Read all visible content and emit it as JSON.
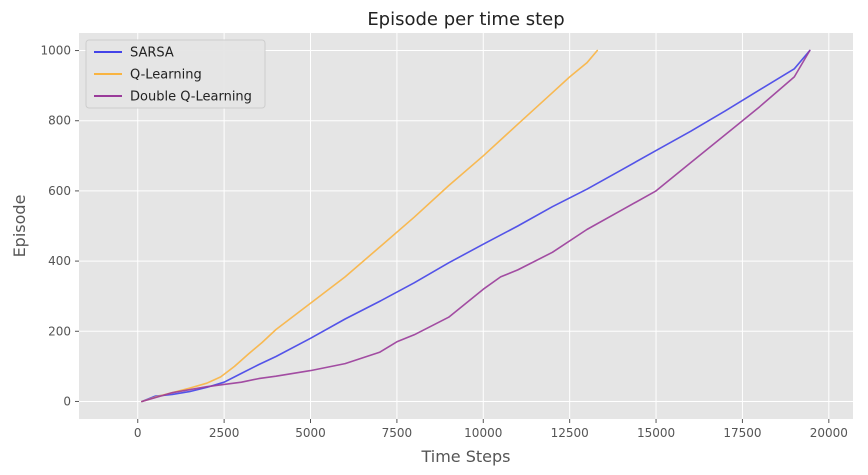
{
  "chart_data": {
    "type": "line",
    "title": "Episode per time step",
    "xlabel": "Time Steps",
    "ylabel": "Episode",
    "xlim": [
      -1700,
      20700
    ],
    "ylim": [
      -50,
      1050
    ],
    "xticks": [
      0,
      2500,
      5000,
      7500,
      10000,
      12500,
      15000,
      17500,
      20000
    ],
    "yticks": [
      0,
      200,
      400,
      600,
      800,
      1000
    ],
    "xtick_labels": [
      "0",
      "2500",
      "5000",
      "7500",
      "10000",
      "12500",
      "15000",
      "17500",
      "20000"
    ],
    "ytick_labels": [
      "0",
      "200",
      "400",
      "600",
      "800",
      "1000"
    ],
    "grid": true,
    "legend_position": "top-left",
    "background": "#e5e5e5",
    "series": [
      {
        "name": "SARSA",
        "color": "#4343e8",
        "x": [
          120,
          500,
          1000,
          1500,
          2000,
          2500,
          3000,
          3500,
          4000,
          5000,
          6000,
          7000,
          8000,
          9000,
          10000,
          11000,
          12000,
          13000,
          14000,
          15000,
          16000,
          17000,
          18000,
          19000,
          19450
        ],
        "y": [
          0,
          15,
          20,
          28,
          40,
          55,
          80,
          105,
          128,
          180,
          235,
          285,
          338,
          395,
          448,
          500,
          555,
          605,
          660,
          715,
          770,
          828,
          888,
          948,
          1000
        ]
      },
      {
        "name": "Q-Learning",
        "color": "#f9b441",
        "x": [
          120,
          500,
          1000,
          1500,
          2000,
          2400,
          2800,
          3200,
          3600,
          4000,
          5000,
          6000,
          7000,
          8000,
          9000,
          10000,
          11000,
          12000,
          12500,
          13000,
          13300
        ],
        "y": [
          0,
          12,
          25,
          38,
          52,
          70,
          100,
          135,
          168,
          205,
          280,
          355,
          440,
          525,
          615,
          700,
          790,
          880,
          925,
          965,
          1000
        ]
      },
      {
        "name": "Double Q-Learning",
        "color": "#9a3b9a",
        "x": [
          120,
          1000,
          2000,
          3000,
          3500,
          4000,
          5000,
          5500,
          6000,
          7000,
          7500,
          8000,
          9000,
          10000,
          10500,
          11000,
          12000,
          13000,
          14000,
          15000,
          16000,
          17000,
          18000,
          19000,
          19450
        ],
        "y": [
          0,
          25,
          42,
          55,
          65,
          72,
          88,
          98,
          108,
          140,
          170,
          190,
          240,
          320,
          355,
          375,
          425,
          490,
          545,
          600,
          680,
          760,
          840,
          925,
          1000
        ]
      }
    ]
  }
}
